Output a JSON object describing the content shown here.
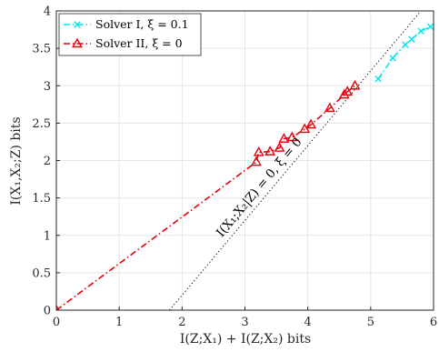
{
  "chart_data": {
    "type": "line",
    "xlabel": "I(Z;X₁) + I(Z;X₂) bits",
    "ylabel": "I(X₁,X₂;Z) bits",
    "xlim": [
      0,
      6
    ],
    "ylim": [
      0,
      4
    ],
    "x_ticks": [
      "0",
      "1",
      "2",
      "3",
      "4",
      "5",
      "6"
    ],
    "y_ticks": [
      "0",
      "0.5",
      "1",
      "1.5",
      "2",
      "2.5",
      "3",
      "3.5",
      "4"
    ],
    "grid": true,
    "legend_position": "top-left",
    "series": [
      {
        "name": "Solver I, ξ = 0.1",
        "color": "#00e5ee",
        "marker": "x",
        "line_style": "dash-dot",
        "x": [
          5.12,
          5.35,
          5.55,
          5.65,
          5.8,
          5.95
        ],
        "y": [
          3.09,
          3.37,
          3.55,
          3.62,
          3.73,
          3.79
        ]
      },
      {
        "name": "Solver II, ξ = 0",
        "color": "#e8000b",
        "marker": "triangle",
        "line_style": "dash-dot",
        "x": [
          0.0,
          3.18,
          3.22,
          3.4,
          3.55,
          3.62,
          3.75,
          3.95,
          4.05,
          4.35,
          4.58,
          4.63,
          4.75
        ],
        "y": [
          0.0,
          1.98,
          2.11,
          2.12,
          2.17,
          2.29,
          2.31,
          2.42,
          2.48,
          2.7,
          2.88,
          2.92,
          3.0
        ]
      }
    ],
    "reference_line": {
      "label": "I(X₁;X₂|Z) = 0, ξ = 0",
      "x": [
        1.8,
        5.8
      ],
      "y": [
        0,
        4
      ]
    }
  }
}
